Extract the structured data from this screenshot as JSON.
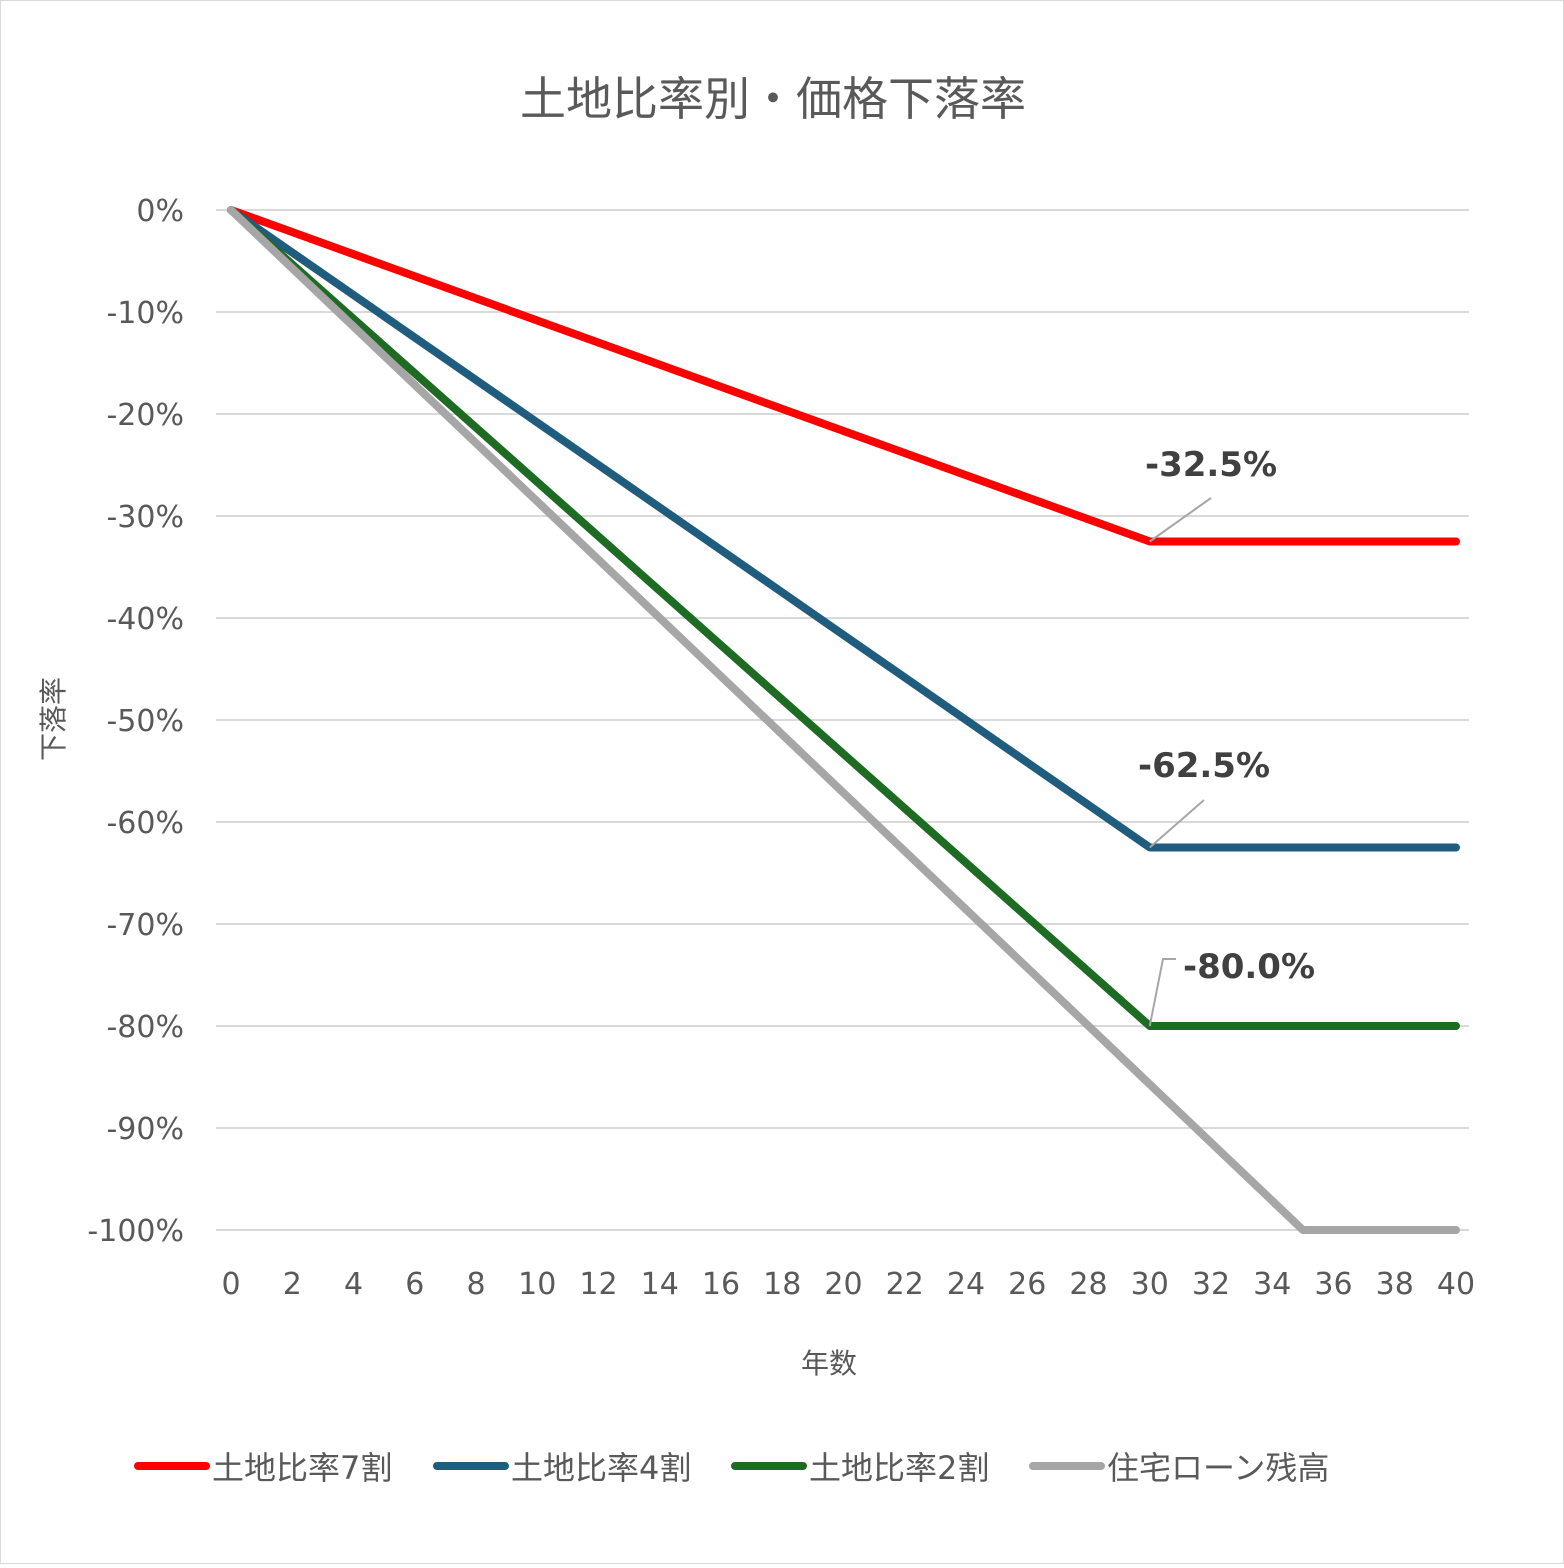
{
  "chart_data": {
    "type": "line",
    "title": "土地比率別・価格下落率",
    "xlabel": "年数",
    "ylabel": "下落率",
    "x": [
      0,
      30,
      35,
      40
    ],
    "x_ticks": [
      "0",
      "2",
      "4",
      "6",
      "8",
      "10",
      "12",
      "14",
      "16",
      "18",
      "20",
      "22",
      "24",
      "26",
      "28",
      "30",
      "32",
      "34",
      "36",
      "38",
      "40"
    ],
    "xlim": [
      0,
      40
    ],
    "ylim": [
      -100,
      0
    ],
    "y_ticks": [
      "0%",
      "-10%",
      "-20%",
      "-30%",
      "-40%",
      "-50%",
      "-60%",
      "-70%",
      "-80%",
      "-90%",
      "-100%"
    ],
    "grid": true,
    "legend_position": "bottom",
    "series": [
      {
        "name": "土地比率7割",
        "color": "#ff0000",
        "points": [
          [
            0,
            0
          ],
          [
            30,
            -32.5
          ],
          [
            40,
            -32.5
          ]
        ]
      },
      {
        "name": "土地比率4割",
        "color": "#1f5c7e",
        "points": [
          [
            0,
            0
          ],
          [
            30,
            -62.5
          ],
          [
            40,
            -62.5
          ]
        ]
      },
      {
        "name": "土地比率2割",
        "color": "#1e6b23",
        "points": [
          [
            0,
            0
          ],
          [
            30,
            -80
          ],
          [
            40,
            -80
          ]
        ]
      },
      {
        "name": "住宅ローン残高",
        "color": "#a6a6a6",
        "points": [
          [
            0,
            0
          ],
          [
            35,
            -100
          ],
          [
            40,
            -100
          ]
        ]
      }
    ],
    "annotations": [
      {
        "text": "-32.5%",
        "series": "土地比率7割",
        "x": 30,
        "y": -32.5
      },
      {
        "text": "-62.5%",
        "series": "土地比率4割",
        "x": 30,
        "y": -62.5
      },
      {
        "text": "-80.0%",
        "series": "土地比率2割",
        "x": 30,
        "y": -80
      }
    ]
  }
}
